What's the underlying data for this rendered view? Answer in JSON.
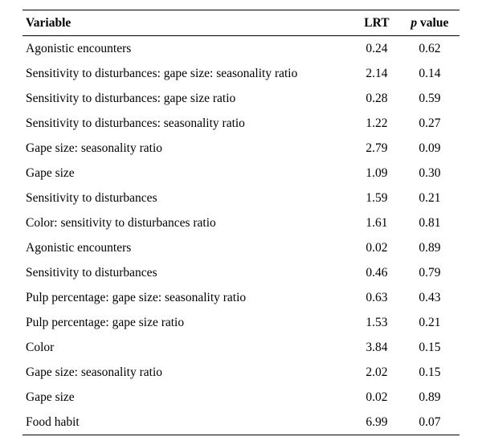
{
  "table": {
    "headers": {
      "variable": "Variable",
      "lrt": "LRT",
      "p_prefix": "p",
      "p_suffix": " value"
    },
    "rows": [
      {
        "variable": "Agonistic encounters",
        "lrt": "0.24",
        "p": "0.62"
      },
      {
        "variable": "Sensitivity to disturbances: gape size: seasonality ratio",
        "lrt": "2.14",
        "p": "0.14"
      },
      {
        "variable": "Sensitivity to disturbances: gape size ratio",
        "lrt": "0.28",
        "p": "0.59"
      },
      {
        "variable": "Sensitivity to disturbances: seasonality ratio",
        "lrt": "1.22",
        "p": "0.27"
      },
      {
        "variable": "Gape size: seasonality ratio",
        "lrt": "2.79",
        "p": "0.09"
      },
      {
        "variable": "Gape size",
        "lrt": "1.09",
        "p": "0.30"
      },
      {
        "variable": "Sensitivity to disturbances",
        "lrt": "1.59",
        "p": "0.21"
      },
      {
        "variable": "Color: sensitivity to disturbances ratio",
        "lrt": "1.61",
        "p": "0.81"
      },
      {
        "variable": "Agonistic encounters",
        "lrt": "0.02",
        "p": "0.89"
      },
      {
        "variable": "Sensitivity to disturbances",
        "lrt": "0.46",
        "p": "0.79"
      },
      {
        "variable": "Pulp percentage: gape size: seasonality ratio",
        "lrt": "0.63",
        "p": "0.43"
      },
      {
        "variable": "Pulp percentage: gape size ratio",
        "lrt": "1.53",
        "p": "0.21"
      },
      {
        "variable": "Color",
        "lrt": "3.84",
        "p": "0.15"
      },
      {
        "variable": "Gape size: seasonality ratio",
        "lrt": "2.02",
        "p": "0.15"
      },
      {
        "variable": "Gape size",
        "lrt": "0.02",
        "p": "0.89"
      },
      {
        "variable": "Food habit",
        "lrt": "6.99",
        "p": "0.07"
      }
    ]
  }
}
